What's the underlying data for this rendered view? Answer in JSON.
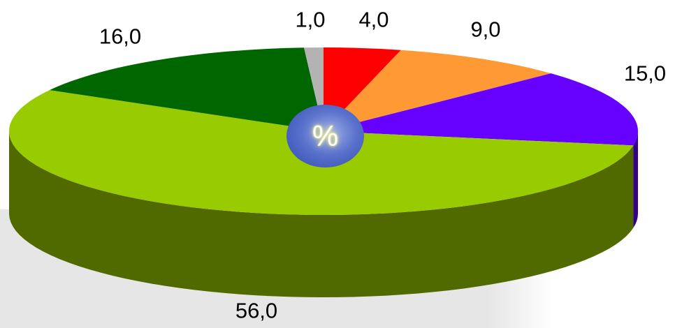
{
  "chart_data": {
    "type": "pie",
    "title": "",
    "center_label": "%",
    "slices": [
      {
        "label": "4,0",
        "value": 4,
        "color": "#ff0000"
      },
      {
        "label": "9,0",
        "value": 9,
        "color": "#ff9933"
      },
      {
        "label": "15,0",
        "value": 15,
        "color": "#6600ff"
      },
      {
        "label": "56,0",
        "value": 56,
        "color": "#99cc00"
      },
      {
        "label": "16,0",
        "value": 16,
        "color": "#006600"
      },
      {
        "label": "1,0",
        "value": 1,
        "color": "#b3b3b3"
      }
    ]
  }
}
